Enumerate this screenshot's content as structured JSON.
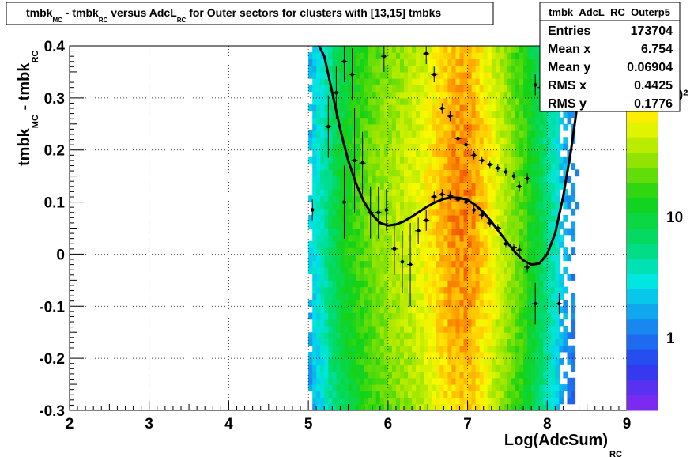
{
  "title": {
    "segments": [
      {
        "text": "tmbk",
        "sub": "MC"
      },
      {
        "text": " - tmbk",
        "sub": "RC"
      },
      {
        "text": " versus AdcL",
        "sub": "RC"
      },
      {
        "text": " for Outer sectors for clusters with [13,15] tmbks",
        "sub": ""
      }
    ]
  },
  "stats_box": {
    "name": "tmbk_AdcL_RC_Outerp5",
    "rows": [
      {
        "label": "Entries",
        "value": "173704"
      },
      {
        "label": "Mean x",
        "value": "6.754"
      },
      {
        "label": "Mean y",
        "value": "0.06904"
      },
      {
        "label": "RMS x",
        "value": "0.4425"
      },
      {
        "label": "RMS y",
        "value": "0.1776"
      }
    ]
  },
  "colors": {
    "background": "#ffffff",
    "frame": "#000000",
    "grid": "#000000",
    "markers": "#000000",
    "fit_curve": "#000000"
  },
  "chart_data": {
    "type": "heatmap",
    "title": "tmbk_MC - tmbk_RC versus AdcL_RC for Outer sectors for clusters with [13,15] tmbks",
    "xlabel": {
      "main": "Log(AdcSum)",
      "sub": "RC"
    },
    "ylabel": {
      "main": "tmbk",
      "sub1": "MC",
      "mid": " - tmbk",
      "sub2": "RC"
    },
    "xlim": [
      2,
      9
    ],
    "ylim": [
      -0.3,
      0.4
    ],
    "xticks": [
      "2",
      "3",
      "4",
      "5",
      "6",
      "7",
      "8",
      "9"
    ],
    "yticks": [
      "-0.3",
      "-0.2",
      "-0.1",
      "0",
      "0.1",
      "0.2",
      "0.3",
      "0.4"
    ],
    "grid": true,
    "z_scale": "log",
    "z_range": [
      0.3,
      160
    ],
    "z_ticks": [
      "1",
      "10",
      "10²"
    ],
    "density_profile": {
      "x": [
        5.0,
        5.2,
        5.4,
        5.6,
        5.8,
        6.0,
        6.2,
        6.4,
        6.6,
        6.8,
        7.0,
        7.2,
        7.4,
        7.6,
        7.8,
        8.0,
        8.2,
        8.4
      ],
      "counts": [
        2,
        4,
        9,
        14,
        20,
        26,
        32,
        40,
        58,
        84,
        92,
        60,
        34,
        21,
        11,
        5,
        2,
        1
      ]
    },
    "profile_points": [
      {
        "x": 5.05,
        "y": 0.085,
        "ey": 0.02
      },
      {
        "x": 5.25,
        "y": 0.245,
        "ey": 0.06
      },
      {
        "x": 5.35,
        "y": 0.31,
        "ey": 0.05
      },
      {
        "x": 5.45,
        "y": 0.37,
        "ey": 0.04
      },
      {
        "x": 5.45,
        "y": 0.1,
        "ey": 0.07
      },
      {
        "x": 5.55,
        "y": 0.345,
        "ey": 0.05
      },
      {
        "x": 5.58,
        "y": 0.18,
        "ey": 0.1
      },
      {
        "x": 5.68,
        "y": 0.175,
        "ey": 0.06
      },
      {
        "x": 5.78,
        "y": 0.08,
        "ey": 0.05
      },
      {
        "x": 5.88,
        "y": 0.08,
        "ey": 0.05
      },
      {
        "x": 5.95,
        "y": 0.38,
        "ey": 0.03
      },
      {
        "x": 5.98,
        "y": 0.085,
        "ey": 0.04
      },
      {
        "x": 6.08,
        "y": 0.01,
        "ey": 0.05
      },
      {
        "x": 6.18,
        "y": -0.015,
        "ey": 0.06
      },
      {
        "x": 6.28,
        "y": -0.02,
        "ey": 0.08
      },
      {
        "x": 6.38,
        "y": 0.045,
        "ey": 0.025
      },
      {
        "x": 6.48,
        "y": 0.065,
        "ey": 0.02
      },
      {
        "x": 6.48,
        "y": 0.385,
        "ey": 0.02
      },
      {
        "x": 6.58,
        "y": 0.345,
        "ey": 0.015
      },
      {
        "x": 6.58,
        "y": 0.11,
        "ey": 0.01
      },
      {
        "x": 6.68,
        "y": 0.28,
        "ey": 0.01
      },
      {
        "x": 6.68,
        "y": 0.115,
        "ey": 0.01
      },
      {
        "x": 6.78,
        "y": 0.265,
        "ey": 0.01
      },
      {
        "x": 6.78,
        "y": 0.112,
        "ey": 0.008
      },
      {
        "x": 6.88,
        "y": 0.222,
        "ey": 0.008
      },
      {
        "x": 6.88,
        "y": 0.105,
        "ey": 0.008
      },
      {
        "x": 6.98,
        "y": 0.21,
        "ey": 0.008
      },
      {
        "x": 6.98,
        "y": 0.1,
        "ey": 0.008
      },
      {
        "x": 7.08,
        "y": 0.19,
        "ey": 0.008
      },
      {
        "x": 7.08,
        "y": 0.085,
        "ey": 0.008
      },
      {
        "x": 7.18,
        "y": 0.18,
        "ey": 0.008
      },
      {
        "x": 7.18,
        "y": 0.075,
        "ey": 0.008
      },
      {
        "x": 7.28,
        "y": 0.172,
        "ey": 0.008
      },
      {
        "x": 7.28,
        "y": 0.06,
        "ey": 0.008
      },
      {
        "x": 7.38,
        "y": 0.165,
        "ey": 0.008
      },
      {
        "x": 7.38,
        "y": 0.05,
        "ey": 0.008
      },
      {
        "x": 7.48,
        "y": 0.158,
        "ey": 0.008
      },
      {
        "x": 7.48,
        "y": 0.02,
        "ey": 0.008
      },
      {
        "x": 7.58,
        "y": 0.15,
        "ey": 0.008
      },
      {
        "x": 7.58,
        "y": 0.012,
        "ey": 0.008
      },
      {
        "x": 7.65,
        "y": 0.13,
        "ey": 0.01
      },
      {
        "x": 7.65,
        "y": 0.008,
        "ey": 0.01
      },
      {
        "x": 7.75,
        "y": 0.145,
        "ey": 0.01
      },
      {
        "x": 7.75,
        "y": -0.025,
        "ey": 0.01
      },
      {
        "x": 7.85,
        "y": 0.325,
        "ey": 0.02
      },
      {
        "x": 7.85,
        "y": -0.095,
        "ey": 0.04
      },
      {
        "x": 7.92,
        "y": 0.32,
        "ey": 0.02
      },
      {
        "x": 8.15,
        "y": -0.095,
        "ey": 0.02
      }
    ],
    "fit_curve": {
      "x": [
        5.1,
        5.2,
        5.3,
        5.4,
        5.5,
        5.6,
        5.7,
        5.8,
        5.9,
        6.0,
        6.1,
        6.2,
        6.3,
        6.4,
        6.5,
        6.6,
        6.7,
        6.8,
        6.9,
        7.0,
        7.1,
        7.2,
        7.3,
        7.4,
        7.5,
        7.6,
        7.7,
        7.8,
        7.9,
        8.0,
        8.1,
        8.2,
        8.3,
        8.4,
        8.5
      ],
      "y": [
        0.41,
        0.38,
        0.31,
        0.24,
        0.18,
        0.135,
        0.1,
        0.076,
        0.06,
        0.055,
        0.057,
        0.063,
        0.072,
        0.082,
        0.092,
        0.1,
        0.106,
        0.109,
        0.108,
        0.104,
        0.094,
        0.08,
        0.062,
        0.042,
        0.022,
        0.003,
        -0.012,
        -0.02,
        -0.018,
        0.0,
        0.04,
        0.11,
        0.2,
        0.31,
        0.42
      ]
    }
  }
}
